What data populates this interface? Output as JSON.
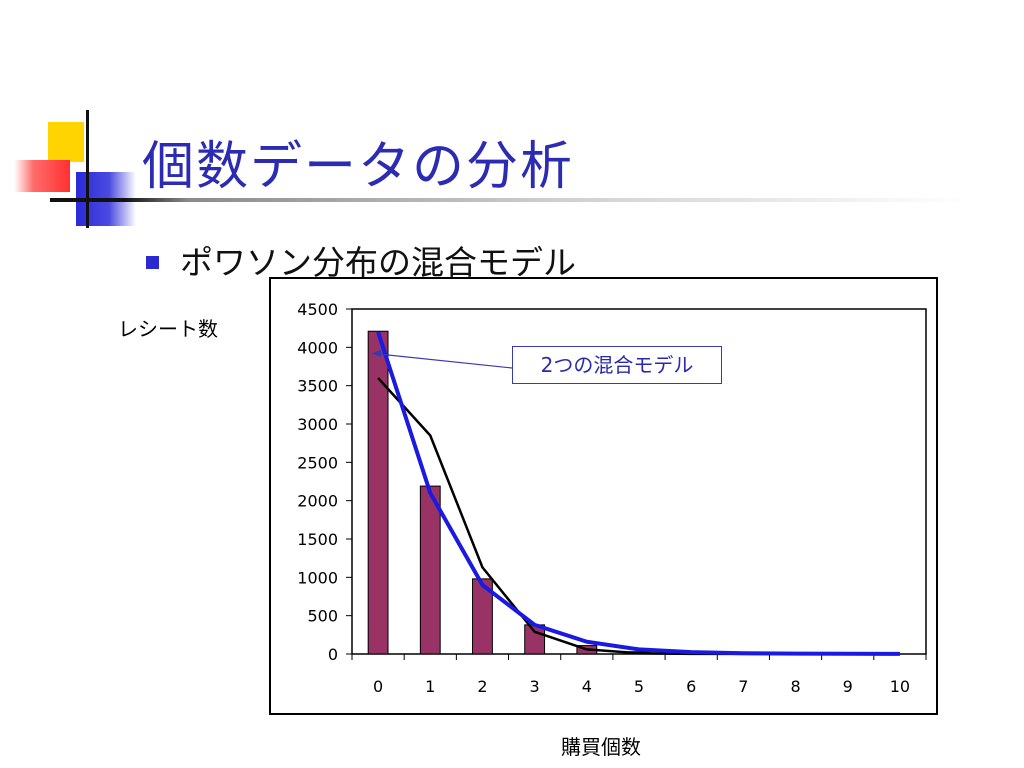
{
  "slide": {
    "title": "個数データの分析",
    "bullet": "ポワソン分布の混合モデル"
  },
  "colors": {
    "title": "#2b2bb3",
    "bar": "#993366",
    "model_line": "#1a1ae0",
    "observed_line": "#000000",
    "callout_text": "#2a2ab0"
  },
  "chart_data": {
    "type": "bar",
    "title": "",
    "xlabel": "購買個数",
    "ylabel": "レシート数",
    "categories": [
      "0",
      "1",
      "2",
      "3",
      "4",
      "5",
      "6",
      "7",
      "8",
      "9",
      "10"
    ],
    "yticks": [
      "0",
      "500",
      "1000",
      "1500",
      "2000",
      "2500",
      "3000",
      "3500",
      "4000",
      "4500"
    ],
    "ylim": [
      0,
      4500
    ],
    "grid": false,
    "series": [
      {
        "type": "bar",
        "values": [
          4210,
          2190,
          980,
          380,
          110,
          30,
          10,
          5,
          2,
          1,
          0
        ]
      },
      {
        "type": "line",
        "values": [
          4200,
          2100,
          900,
          380,
          160,
          60,
          25,
          10,
          5,
          3,
          2
        ]
      },
      {
        "type": "line",
        "values": [
          3600,
          2850,
          1130,
          290,
          60,
          10,
          2,
          1,
          0,
          0,
          0
        ]
      }
    ],
    "annotation": {
      "text": "2つの混合モデル",
      "points_to_category": "0",
      "points_to_value": 4000
    }
  }
}
